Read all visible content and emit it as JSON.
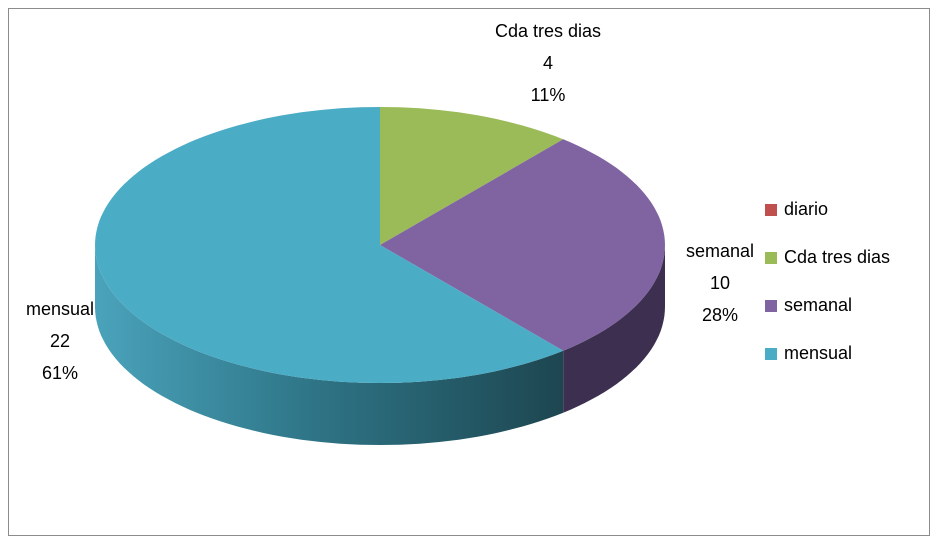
{
  "chart_data": {
    "type": "pie",
    "categories": [
      "diario",
      "Cda tres dias",
      "semanal",
      "mensual"
    ],
    "values": [
      0,
      4,
      10,
      22
    ],
    "percent_labels": [
      null,
      "11%",
      "28%",
      "61%"
    ],
    "colors": [
      "#c0504d",
      "#9bbb59",
      "#8064a2",
      "#4bacc6"
    ],
    "legend": "right"
  }
}
